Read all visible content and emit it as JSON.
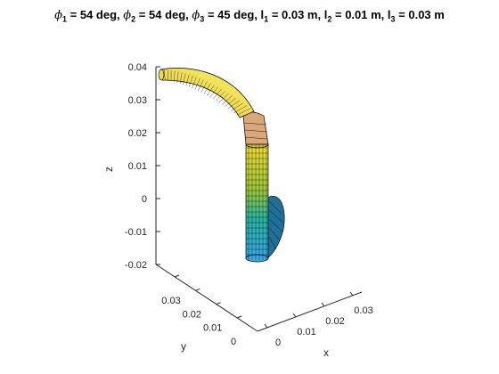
{
  "chart_data": {
    "type": "surface3d",
    "title_parts": {
      "phi1": "= 54 deg,",
      "phi2": "= 54 deg,",
      "phi3": "= 45 deg,",
      "l1": "= 0.03 m,",
      "l2": "= 0.01 m,",
      "l3": "= 0.03 m"
    },
    "xlabel": "x",
    "ylabel": "y",
    "zlabel": "z",
    "x_ticks": [
      "0",
      "0.01",
      "0.02",
      "0.03"
    ],
    "y_ticks": [
      "0",
      "0.01",
      "0.02",
      "0.03"
    ],
    "z_ticks": [
      "-0.02",
      "-0.01",
      "0",
      "0.01",
      "0.02",
      "0.03",
      "0.04"
    ],
    "zlim": [
      -0.02,
      0.04
    ],
    "colormap": "parula",
    "colors": {
      "surface_edge": "#000000",
      "axis": "#262626"
    },
    "segments": [
      {
        "name": "segment-1",
        "phi_deg": 54,
        "length_m": 0.03
      },
      {
        "name": "segment-2",
        "phi_deg": 54,
        "length_m": 0.01
      },
      {
        "name": "segment-3",
        "phi_deg": 45,
        "length_m": 0.03
      }
    ]
  }
}
